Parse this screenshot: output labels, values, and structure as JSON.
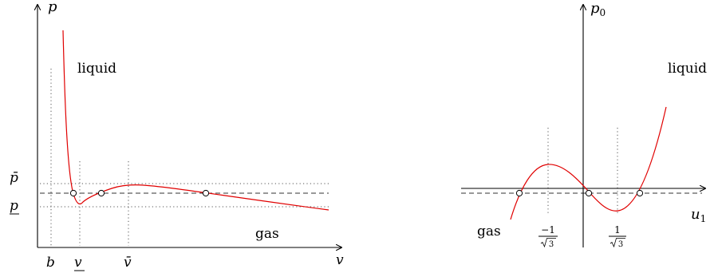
{
  "left_panel": {
    "y_axis_label": "p",
    "x_axis_label": "v",
    "region_liquid": "liquid",
    "region_gas": "gas",
    "p_upper_label": "p̄",
    "p_lower_label": "p",
    "x_b_label": "b",
    "x_v_lower_label": "v",
    "x_v_upper_label": "v̄"
  },
  "right_panel": {
    "y_axis_label_base": "p",
    "y_axis_label_sub": "0",
    "x_axis_label_base": "u",
    "x_axis_label_sub": "1",
    "region_liquid": "liquid",
    "region_gas": "gas",
    "tick_neg_num": "−1",
    "tick_pos_num": "1",
    "tick_den": "3"
  }
}
